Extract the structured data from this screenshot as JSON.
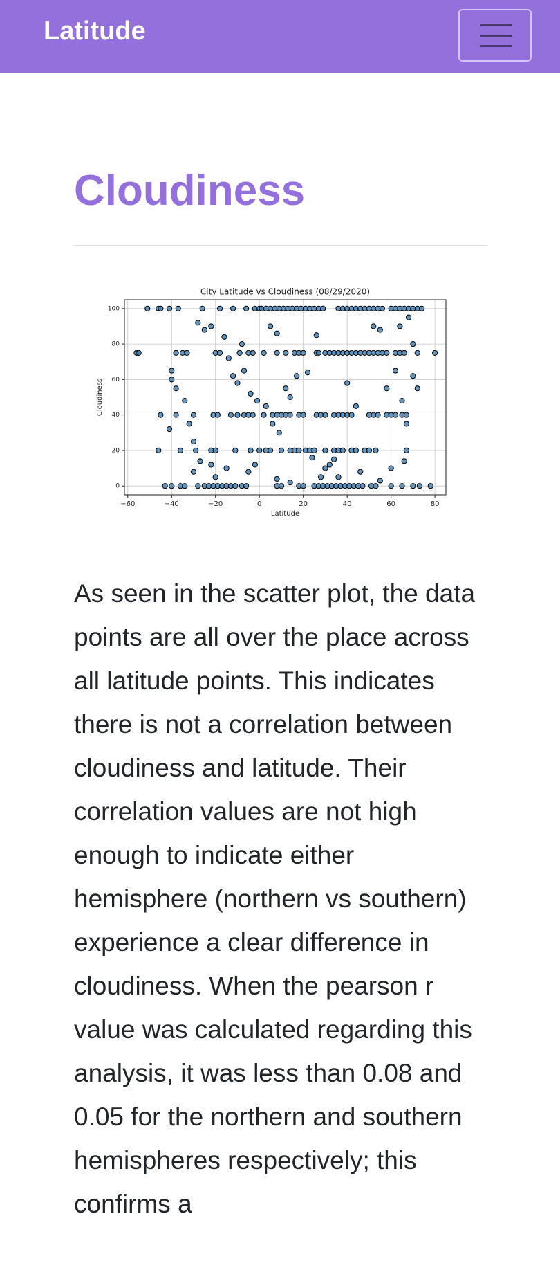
{
  "navbar": {
    "brand": "Latitude"
  },
  "heading": "Cloudiness",
  "chart_data": {
    "type": "scatter",
    "title": "City Latitude vs Cloudiness (08/29/2020)",
    "x_label": "Latitude",
    "y_label": "Cloudiness",
    "color": "#4682b4",
    "edge_color": "#000000",
    "grid": true,
    "xlim": [
      -61.5,
      85
    ],
    "ylim": [
      -5,
      105
    ],
    "xticks": [
      {
        "value": -60,
        "label": "−60"
      },
      {
        "value": -40,
        "label": "−40"
      },
      {
        "value": -20,
        "label": "−20"
      },
      0,
      20,
      40,
      60,
      80
    ],
    "yticks": [
      0,
      20,
      40,
      60,
      80,
      100
    ],
    "x": [
      -51,
      -46,
      -45,
      -41,
      -37,
      -26,
      -18,
      -12,
      -6,
      -2,
      0,
      1,
      3,
      5,
      7,
      9,
      11,
      13,
      15,
      17,
      19,
      21,
      23,
      25,
      27,
      29,
      36,
      38,
      40,
      42,
      44,
      46,
      48,
      50,
      52,
      54,
      56,
      60,
      62,
      64,
      66,
      68,
      70,
      72,
      74,
      -43,
      -40,
      -36,
      -34,
      -28,
      -25,
      -23,
      -21,
      -19,
      -17,
      -15,
      -13,
      -11,
      -8,
      -6,
      8,
      10,
      18,
      20,
      25,
      27,
      29,
      31,
      33,
      35,
      37,
      39,
      41,
      43,
      45,
      47,
      51,
      53,
      60,
      65,
      70,
      73,
      78,
      -56,
      -55,
      -38,
      -35,
      -33,
      -20,
      -18,
      -9,
      -5,
      -3,
      2,
      8,
      12,
      16,
      18,
      20,
      26,
      27,
      30,
      32,
      34,
      36,
      38,
      40,
      42,
      44,
      46,
      48,
      50,
      52,
      54,
      56,
      58,
      62,
      64,
      66,
      72,
      80,
      -45,
      -38,
      -30,
      -21,
      -19,
      -13,
      -10,
      -7,
      -5,
      -3,
      2,
      6,
      8,
      10,
      12,
      14,
      18,
      20,
      26,
      28,
      30,
      34,
      36,
      38,
      40,
      42,
      50,
      52,
      54,
      58,
      60,
      62,
      65,
      67,
      -46,
      -36,
      -29,
      -22,
      -20,
      -11,
      -4,
      0,
      3,
      5,
      10,
      14,
      16,
      18,
      21,
      23,
      25,
      30,
      34,
      36,
      38,
      42,
      44,
      48,
      50,
      53,
      67,
      -40,
      -40,
      -38,
      -34,
      -32,
      -30,
      -28,
      -25,
      -22,
      -16,
      -14,
      -12,
      -10,
      -7,
      -4,
      -1,
      3,
      6,
      9,
      12,
      14,
      17,
      22,
      26,
      30,
      32,
      36,
      40,
      44,
      52,
      55,
      58,
      62,
      65,
      67,
      70,
      72,
      -41,
      -30,
      -27,
      -22,
      -20,
      -15,
      -5,
      -2,
      8,
      14,
      24,
      28,
      34,
      46,
      55,
      60,
      66,
      70,
      68,
      64,
      5,
      8,
      -8
    ],
    "values": [
      100,
      100,
      100,
      100,
      100,
      100,
      100,
      100,
      100,
      100,
      100,
      100,
      100,
      100,
      100,
      100,
      100,
      100,
      100,
      100,
      100,
      100,
      100,
      100,
      100,
      100,
      100,
      100,
      100,
      100,
      100,
      100,
      100,
      100,
      100,
      100,
      100,
      100,
      100,
      100,
      100,
      100,
      100,
      100,
      100,
      0,
      0,
      0,
      0,
      0,
      0,
      0,
      0,
      0,
      0,
      0,
      0,
      0,
      0,
      0,
      0,
      0,
      0,
      0,
      0,
      0,
      0,
      0,
      0,
      0,
      0,
      0,
      0,
      0,
      0,
      0,
      0,
      0,
      0,
      0,
      0,
      0,
      0,
      75,
      75,
      75,
      75,
      75,
      75,
      75,
      75,
      75,
      75,
      75,
      75,
      75,
      75,
      75,
      75,
      75,
      75,
      75,
      75,
      75,
      75,
      75,
      75,
      75,
      75,
      75,
      75,
      75,
      75,
      75,
      75,
      75,
      75,
      75,
      75,
      75,
      75,
      40,
      40,
      40,
      40,
      40,
      40,
      40,
      40,
      40,
      40,
      40,
      40,
      40,
      40,
      40,
      40,
      40,
      40,
      40,
      40,
      40,
      40,
      40,
      40,
      40,
      40,
      40,
      40,
      40,
      40,
      40,
      40,
      40,
      40,
      20,
      20,
      20,
      20,
      20,
      20,
      20,
      20,
      20,
      20,
      20,
      20,
      20,
      20,
      20,
      20,
      20,
      20,
      20,
      20,
      20,
      20,
      20,
      20,
      20,
      20,
      20,
      65,
      60,
      55,
      48,
      35,
      25,
      92,
      88,
      90,
      84,
      72,
      62,
      58,
      65,
      52,
      48,
      45,
      35,
      30,
      55,
      50,
      62,
      64,
      85,
      10,
      12,
      5,
      58,
      45,
      90,
      88,
      55,
      65,
      48,
      35,
      62,
      55,
      32,
      8,
      14,
      12,
      5,
      10,
      8,
      12,
      4,
      2,
      16,
      5,
      15,
      8,
      3,
      10,
      14,
      80,
      95,
      90,
      90,
      86,
      80
    ]
  },
  "paragraph": "As seen in the scatter plot, the data points are all over the place across all latitude points. This indicates there is not a correlation between cloudiness and latitude. Their correlation values are not high enough to indicate either hemisphere (northern vs southern) experience a clear difference in cloudiness. When the pearson r value was calculated regarding this analysis, it was less than 0.08 and 0.05 for the northern and southern hemispheres respectively; this confirms a"
}
